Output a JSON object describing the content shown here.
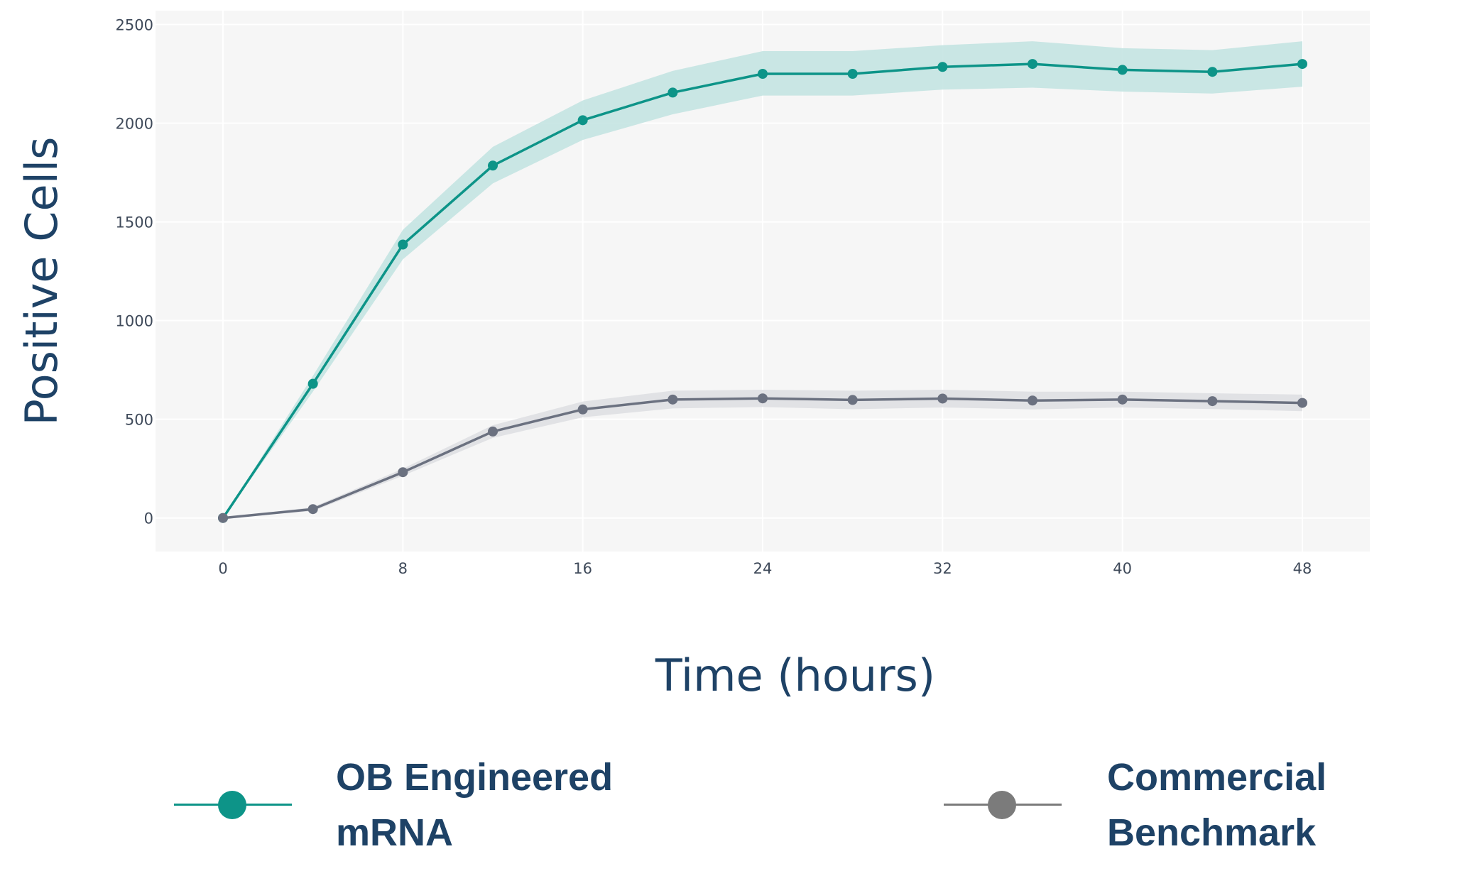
{
  "chart_data": {
    "type": "line",
    "title": "",
    "xlabel": "Time (hours)",
    "ylabel": "Positive Cells",
    "xlim": [
      -3,
      51
    ],
    "ylim": [
      -170,
      2570
    ],
    "x_ticks": [
      0,
      8,
      16,
      24,
      32,
      40,
      48
    ],
    "y_ticks": [
      0,
      500,
      1000,
      1500,
      2000,
      2500
    ],
    "grid": true,
    "legend_position": "bottom",
    "x": [
      0,
      4,
      8,
      12,
      16,
      20,
      24,
      28,
      32,
      36,
      40,
      44,
      48
    ],
    "series": [
      {
        "name": "OB Engineered\nmRNA",
        "color": "#0d9488",
        "band_color": "#c4e4e2",
        "values": [
          0,
          680,
          1385,
          1785,
          2015,
          2155,
          2250,
          2250,
          2285,
          2300,
          2270,
          2260,
          2300
        ],
        "upper": [
          0,
          720,
          1460,
          1880,
          2115,
          2265,
          2365,
          2365,
          2395,
          2415,
          2380,
          2370,
          2415
        ],
        "lower": [
          0,
          640,
          1310,
          1695,
          1915,
          2045,
          2140,
          2140,
          2170,
          2180,
          2160,
          2150,
          2185
        ]
      },
      {
        "name": "Commercial\nBenchmark",
        "color": "#6b7180",
        "band_color": "#dfe0e3",
        "values": [
          0,
          45,
          232,
          438,
          550,
          600,
          606,
          598,
          605,
          595,
          600,
          592,
          583
        ],
        "upper": [
          0,
          55,
          250,
          470,
          590,
          645,
          650,
          645,
          650,
          640,
          640,
          632,
          625
        ],
        "lower": [
          0,
          35,
          214,
          406,
          510,
          555,
          562,
          551,
          560,
          550,
          560,
          552,
          541
        ]
      }
    ]
  }
}
